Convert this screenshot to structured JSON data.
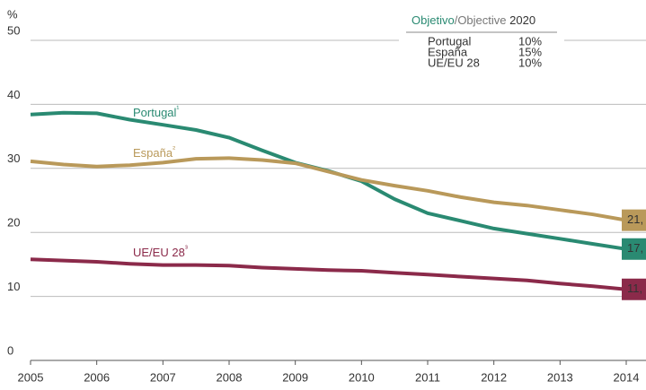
{
  "chart_data": {
    "type": "line",
    "y_label": "%",
    "x": [
      2005,
      2005.5,
      2006,
      2006.5,
      2007,
      2007.5,
      2008,
      2008.5,
      2009,
      2009.5,
      2010,
      2010.5,
      2011,
      2011.5,
      2012,
      2012.5,
      2013,
      2013.5,
      2014
    ],
    "xlim": [
      2005,
      2014
    ],
    "xticks": [
      2005,
      2006,
      2007,
      2008,
      2009,
      2010,
      2011,
      2012,
      2013,
      2014
    ],
    "ylim": [
      0,
      50
    ],
    "yticks": [
      0,
      10,
      20,
      30,
      40,
      50
    ],
    "grid": true,
    "series": [
      {
        "name": "Portugal",
        "footnote": "¹",
        "color": "#2a8a72",
        "values": [
          38.4,
          38.7,
          38.6,
          37.6,
          36.8,
          36.0,
          34.8,
          32.8,
          30.9,
          29.6,
          28.0,
          25.2,
          23.0,
          21.8,
          20.6,
          19.8,
          19.0,
          18.2,
          17.4
        ],
        "end_value": 17.4,
        "end_label": "17,"
      },
      {
        "name": "España",
        "footnote": "²",
        "color": "#b9995a",
        "values": [
          31.1,
          30.6,
          30.3,
          30.5,
          30.9,
          31.5,
          31.6,
          31.3,
          30.8,
          29.5,
          28.2,
          27.3,
          26.5,
          25.5,
          24.7,
          24.2,
          23.5,
          22.8,
          21.9
        ],
        "end_value": 21.9,
        "end_label": "21,"
      },
      {
        "name": "UE/EU 28",
        "footnote": "³",
        "color": "#8b2a4a",
        "values": [
          15.8,
          15.6,
          15.4,
          15.1,
          14.9,
          14.9,
          14.8,
          14.5,
          14.3,
          14.1,
          14.0,
          13.7,
          13.4,
          13.1,
          12.8,
          12.5,
          12.0,
          11.6,
          11.1
        ],
        "end_value": 11.1,
        "end_label": "11,"
      }
    ],
    "objectives": {
      "title": [
        "Objetivo",
        "/Objective",
        " 2020"
      ],
      "values": [
        10,
        15,
        10
      ],
      "value_labels": [
        "10%",
        "15%",
        "10%"
      ]
    }
  }
}
